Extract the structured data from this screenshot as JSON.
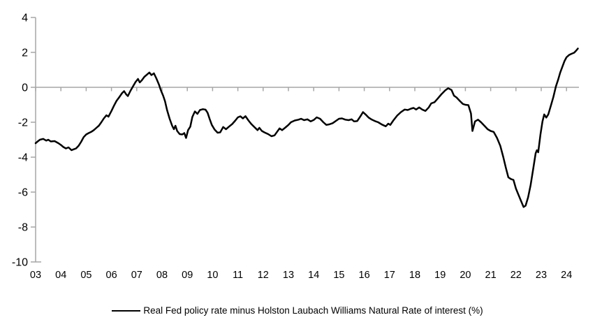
{
  "chart_data": {
    "type": "line",
    "series": [
      {
        "name": "Real Fed policy rate minus Holston Laubach Williams Natural Rate of interest (%)",
        "color": "#000000",
        "points": [
          [
            3.0,
            -3.2
          ],
          [
            3.08,
            -3.1
          ],
          [
            3.17,
            -3.0
          ],
          [
            3.3,
            -2.95
          ],
          [
            3.42,
            -3.05
          ],
          [
            3.5,
            -3.0
          ],
          [
            3.6,
            -3.1
          ],
          [
            3.75,
            -3.08
          ],
          [
            3.9,
            -3.2
          ],
          [
            4.0,
            -3.3
          ],
          [
            4.1,
            -3.42
          ],
          [
            4.2,
            -3.5
          ],
          [
            4.3,
            -3.44
          ],
          [
            4.42,
            -3.6
          ],
          [
            4.5,
            -3.55
          ],
          [
            4.6,
            -3.5
          ],
          [
            4.7,
            -3.35
          ],
          [
            4.8,
            -3.12
          ],
          [
            4.9,
            -2.85
          ],
          [
            5.0,
            -2.7
          ],
          [
            5.1,
            -2.62
          ],
          [
            5.2,
            -2.55
          ],
          [
            5.3,
            -2.45
          ],
          [
            5.42,
            -2.3
          ],
          [
            5.5,
            -2.2
          ],
          [
            5.6,
            -2.0
          ],
          [
            5.7,
            -1.78
          ],
          [
            5.8,
            -1.6
          ],
          [
            5.88,
            -1.68
          ],
          [
            6.0,
            -1.35
          ],
          [
            6.1,
            -1.05
          ],
          [
            6.2,
            -0.78
          ],
          [
            6.3,
            -0.58
          ],
          [
            6.42,
            -0.33
          ],
          [
            6.5,
            -0.22
          ],
          [
            6.58,
            -0.4
          ],
          [
            6.65,
            -0.5
          ],
          [
            6.75,
            -0.2
          ],
          [
            6.85,
            0.05
          ],
          [
            6.95,
            0.3
          ],
          [
            7.05,
            0.48
          ],
          [
            7.12,
            0.28
          ],
          [
            7.2,
            0.4
          ],
          [
            7.3,
            0.6
          ],
          [
            7.42,
            0.75
          ],
          [
            7.5,
            0.85
          ],
          [
            7.58,
            0.7
          ],
          [
            7.68,
            0.8
          ],
          [
            7.78,
            0.5
          ],
          [
            7.88,
            0.15
          ],
          [
            7.95,
            -0.15
          ],
          [
            8.05,
            -0.5
          ],
          [
            8.12,
            -0.8
          ],
          [
            8.2,
            -1.3
          ],
          [
            8.3,
            -1.8
          ],
          [
            8.4,
            -2.2
          ],
          [
            8.47,
            -2.4
          ],
          [
            8.53,
            -2.2
          ],
          [
            8.6,
            -2.5
          ],
          [
            8.7,
            -2.68
          ],
          [
            8.8,
            -2.7
          ],
          [
            8.88,
            -2.62
          ],
          [
            8.95,
            -2.9
          ],
          [
            9.03,
            -2.45
          ],
          [
            9.12,
            -2.25
          ],
          [
            9.2,
            -1.7
          ],
          [
            9.3,
            -1.38
          ],
          [
            9.4,
            -1.52
          ],
          [
            9.5,
            -1.3
          ],
          [
            9.62,
            -1.25
          ],
          [
            9.72,
            -1.28
          ],
          [
            9.8,
            -1.45
          ],
          [
            9.88,
            -1.8
          ],
          [
            9.97,
            -2.15
          ],
          [
            10.08,
            -2.42
          ],
          [
            10.2,
            -2.6
          ],
          [
            10.3,
            -2.58
          ],
          [
            10.42,
            -2.27
          ],
          [
            10.53,
            -2.4
          ],
          [
            10.65,
            -2.25
          ],
          [
            10.78,
            -2.1
          ],
          [
            10.9,
            -1.9
          ],
          [
            11.0,
            -1.72
          ],
          [
            11.1,
            -1.66
          ],
          [
            11.2,
            -1.78
          ],
          [
            11.3,
            -1.65
          ],
          [
            11.42,
            -1.9
          ],
          [
            11.53,
            -2.1
          ],
          [
            11.65,
            -2.27
          ],
          [
            11.78,
            -2.45
          ],
          [
            11.85,
            -2.32
          ],
          [
            11.95,
            -2.5
          ],
          [
            12.05,
            -2.58
          ],
          [
            12.2,
            -2.68
          ],
          [
            12.33,
            -2.8
          ],
          [
            12.45,
            -2.75
          ],
          [
            12.55,
            -2.55
          ],
          [
            12.65,
            -2.35
          ],
          [
            12.75,
            -2.45
          ],
          [
            12.88,
            -2.3
          ],
          [
            13.0,
            -2.15
          ],
          [
            13.1,
            -2.0
          ],
          [
            13.25,
            -1.9
          ],
          [
            13.4,
            -1.85
          ],
          [
            13.5,
            -1.8
          ],
          [
            13.62,
            -1.88
          ],
          [
            13.75,
            -1.83
          ],
          [
            13.88,
            -1.95
          ],
          [
            14.0,
            -1.87
          ],
          [
            14.12,
            -1.72
          ],
          [
            14.25,
            -1.8
          ],
          [
            14.38,
            -2.0
          ],
          [
            14.5,
            -2.15
          ],
          [
            14.62,
            -2.12
          ],
          [
            14.75,
            -2.05
          ],
          [
            14.88,
            -1.92
          ],
          [
            15.0,
            -1.8
          ],
          [
            15.12,
            -1.78
          ],
          [
            15.25,
            -1.85
          ],
          [
            15.38,
            -1.88
          ],
          [
            15.5,
            -1.83
          ],
          [
            15.6,
            -1.95
          ],
          [
            15.72,
            -1.93
          ],
          [
            15.85,
            -1.65
          ],
          [
            15.95,
            -1.42
          ],
          [
            16.05,
            -1.55
          ],
          [
            16.17,
            -1.73
          ],
          [
            16.3,
            -1.85
          ],
          [
            16.42,
            -1.93
          ],
          [
            16.55,
            -2.0
          ],
          [
            16.7,
            -2.13
          ],
          [
            16.85,
            -2.23
          ],
          [
            16.95,
            -2.08
          ],
          [
            17.03,
            -2.15
          ],
          [
            17.15,
            -1.9
          ],
          [
            17.3,
            -1.62
          ],
          [
            17.45,
            -1.42
          ],
          [
            17.6,
            -1.27
          ],
          [
            17.72,
            -1.3
          ],
          [
            17.85,
            -1.22
          ],
          [
            17.95,
            -1.18
          ],
          [
            18.05,
            -1.27
          ],
          [
            18.17,
            -1.15
          ],
          [
            18.3,
            -1.28
          ],
          [
            18.42,
            -1.35
          ],
          [
            18.55,
            -1.15
          ],
          [
            18.65,
            -0.92
          ],
          [
            18.78,
            -0.85
          ],
          [
            18.9,
            -0.65
          ],
          [
            19.05,
            -0.4
          ],
          [
            19.2,
            -0.18
          ],
          [
            19.32,
            -0.05
          ],
          [
            19.45,
            -0.15
          ],
          [
            19.55,
            -0.48
          ],
          [
            19.65,
            -0.58
          ],
          [
            19.78,
            -0.78
          ],
          [
            19.9,
            -0.95
          ],
          [
            20.0,
            -1.0
          ],
          [
            20.12,
            -1.02
          ],
          [
            20.22,
            -1.5
          ],
          [
            20.28,
            -2.5
          ],
          [
            20.38,
            -1.95
          ],
          [
            20.5,
            -1.85
          ],
          [
            20.62,
            -2.0
          ],
          [
            20.75,
            -2.2
          ],
          [
            20.88,
            -2.4
          ],
          [
            21.0,
            -2.5
          ],
          [
            21.12,
            -2.55
          ],
          [
            21.25,
            -2.9
          ],
          [
            21.38,
            -3.35
          ],
          [
            21.5,
            -4.0
          ],
          [
            21.6,
            -4.6
          ],
          [
            21.7,
            -5.15
          ],
          [
            21.8,
            -5.25
          ],
          [
            21.9,
            -5.3
          ],
          [
            22.0,
            -5.8
          ],
          [
            22.1,
            -6.15
          ],
          [
            22.2,
            -6.5
          ],
          [
            22.3,
            -6.85
          ],
          [
            22.38,
            -6.78
          ],
          [
            22.48,
            -6.3
          ],
          [
            22.58,
            -5.6
          ],
          [
            22.68,
            -4.7
          ],
          [
            22.78,
            -3.78
          ],
          [
            22.83,
            -3.6
          ],
          [
            22.88,
            -3.72
          ],
          [
            22.97,
            -2.7
          ],
          [
            23.05,
            -1.95
          ],
          [
            23.12,
            -1.55
          ],
          [
            23.2,
            -1.73
          ],
          [
            23.28,
            -1.55
          ],
          [
            23.38,
            -1.05
          ],
          [
            23.48,
            -0.55
          ],
          [
            23.58,
            0.05
          ],
          [
            23.67,
            0.45
          ],
          [
            23.75,
            0.85
          ],
          [
            23.83,
            1.15
          ],
          [
            23.92,
            1.5
          ],
          [
            24.0,
            1.72
          ],
          [
            24.1,
            1.85
          ],
          [
            24.2,
            1.92
          ],
          [
            24.3,
            1.98
          ],
          [
            24.38,
            2.1
          ],
          [
            24.45,
            2.22
          ]
        ]
      }
    ],
    "x_tick_labels": [
      "03",
      "04",
      "05",
      "06",
      "07",
      "08",
      "09",
      "10",
      "11",
      "12",
      "13",
      "14",
      "15",
      "16",
      "17",
      "18",
      "19",
      "20",
      "21",
      "22",
      "23",
      "24"
    ],
    "x_tick_start_year": 3,
    "y_tick_values": [
      4,
      2,
      0,
      -2,
      -4,
      -6,
      -8,
      -10
    ],
    "ylim": [
      -10,
      4
    ],
    "xlim": [
      3,
      24.5
    ],
    "grid": false,
    "legend_position": "bottom",
    "axis_color": "#A6A6A6",
    "line_color": "#000000",
    "text_color": "#000000"
  }
}
